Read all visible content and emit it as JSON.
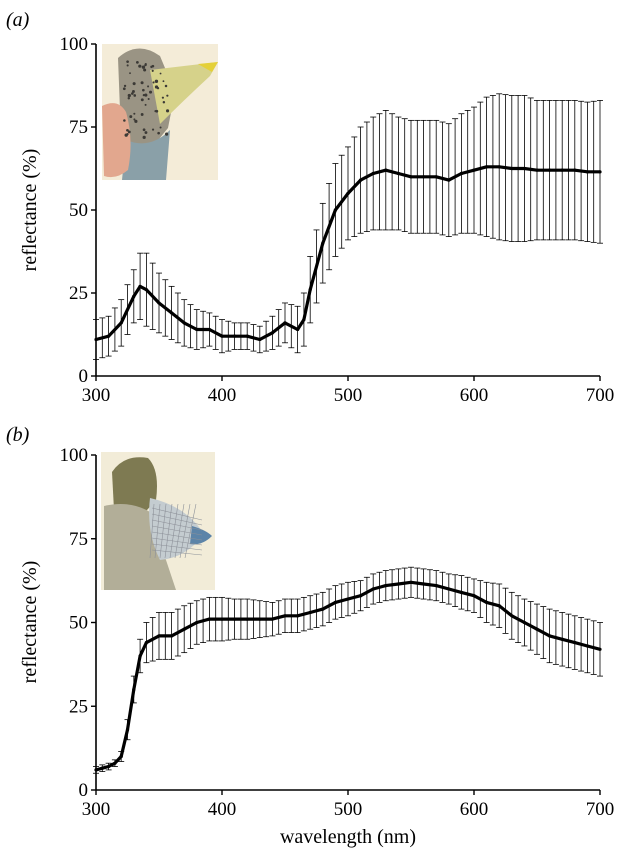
{
  "panels": [
    {
      "label": "(a)",
      "inset_icon": "bird-head-throat-photo",
      "inset_colors": {
        "background": "#f4ecd8",
        "head": "#9a9484",
        "beak": "#d6d28a",
        "beak_tip": "#e4d038",
        "finger": "#e2a78e",
        "throat": "#8aa0a8"
      }
    },
    {
      "label": "(b)",
      "inset_icon": "lizard-dewlap-photo",
      "inset_colors": {
        "background": "#f2ecd8",
        "head": "#7e7a52",
        "body": "#b2ae98",
        "dewlap": "#c4ccd0",
        "dewlap_blue": "#5c84a8",
        "grid": "#8c9098"
      }
    }
  ],
  "chart_data": [
    {
      "type": "line",
      "title": "",
      "xlabel": "",
      "ylabel": "reflectance (%)",
      "xlim": [
        300,
        700
      ],
      "ylim": [
        0,
        100
      ],
      "xticks": [
        300,
        400,
        500,
        600,
        700
      ],
      "yticks": [
        0,
        25,
        50,
        75,
        100
      ],
      "grid": false,
      "series": [
        {
          "error_bars": true,
          "x": [
            300,
            310,
            320,
            330,
            335,
            340,
            350,
            360,
            370,
            380,
            390,
            400,
            410,
            420,
            430,
            440,
            450,
            460,
            465,
            470,
            480,
            490,
            500,
            510,
            520,
            530,
            540,
            550,
            560,
            570,
            580,
            590,
            600,
            610,
            620,
            630,
            640,
            650,
            660,
            670,
            680,
            690,
            700
          ],
          "y": [
            11,
            12,
            16,
            24,
            27,
            26,
            22,
            19,
            16,
            14,
            14,
            12,
            12,
            12,
            11,
            13,
            16,
            14,
            17,
            26,
            40,
            50,
            55,
            59,
            61,
            62,
            61,
            60,
            60,
            60,
            59,
            61,
            62,
            63,
            63,
            62.5,
            62.5,
            62,
            62,
            62,
            62,
            61.5,
            61.5
          ],
          "err": [
            6,
            6,
            7,
            8,
            10,
            11,
            9,
            8,
            7,
            6,
            5,
            5,
            4,
            4,
            4,
            5,
            6,
            7,
            8,
            10,
            12,
            14,
            14,
            16,
            17,
            18,
            17,
            17,
            17,
            17,
            17,
            18,
            19,
            21,
            22,
            22,
            22,
            21,
            21,
            21,
            21,
            21,
            21.5
          ]
        }
      ]
    },
    {
      "type": "line",
      "title": "",
      "xlabel": "wavelength (nm)",
      "ylabel": "reflectance (%)",
      "xlim": [
        300,
        700
      ],
      "ylim": [
        0,
        100
      ],
      "xticks": [
        300,
        400,
        500,
        600,
        700
      ],
      "yticks": [
        0,
        25,
        50,
        75,
        100
      ],
      "grid": false,
      "series": [
        {
          "error_bars": true,
          "x": [
            300,
            305,
            310,
            315,
            320,
            325,
            330,
            335,
            340,
            350,
            360,
            370,
            380,
            390,
            400,
            410,
            420,
            430,
            440,
            450,
            460,
            470,
            480,
            490,
            500,
            510,
            520,
            530,
            540,
            550,
            560,
            570,
            580,
            590,
            600,
            610,
            620,
            630,
            640,
            650,
            660,
            670,
            680,
            690,
            700
          ],
          "y": [
            6,
            6.5,
            7,
            8,
            10,
            18,
            30,
            40,
            44,
            46,
            46,
            48,
            50,
            51,
            51,
            51,
            51,
            51,
            51,
            52,
            52,
            53,
            54,
            56,
            57,
            58,
            60,
            61,
            61.5,
            62,
            61.5,
            61,
            60,
            59,
            58,
            56,
            55,
            52,
            50,
            48,
            46,
            45,
            44,
            43,
            42
          ],
          "err": [
            1,
            1,
            1,
            1,
            1.5,
            3,
            4,
            5,
            6,
            7,
            7,
            7,
            6.5,
            6.5,
            6.5,
            6,
            6,
            5.5,
            5,
            5,
            5,
            5,
            5,
            5,
            5,
            4.5,
            4.5,
            4.5,
            4.5,
            4.5,
            4.5,
            4.5,
            4.5,
            5,
            5,
            6,
            6.5,
            7,
            7,
            7.5,
            8,
            8,
            8,
            8,
            8
          ]
        }
      ]
    }
  ]
}
